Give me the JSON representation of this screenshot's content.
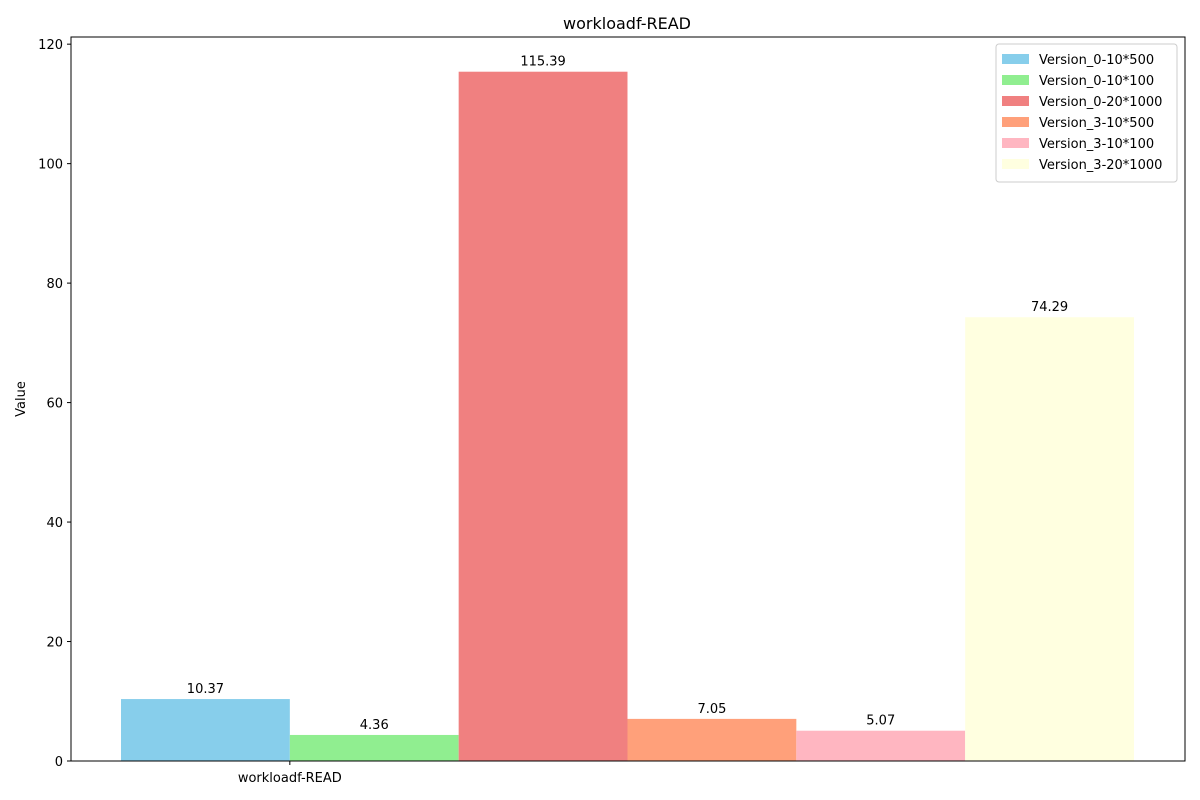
{
  "chart_data": {
    "type": "bar",
    "title": "workloadf-READ",
    "xlabel": "",
    "ylabel": "Value",
    "categories": [
      "workloadf-READ"
    ],
    "ylim": [
      0,
      121.2
    ],
    "yticks": [
      0,
      20,
      40,
      60,
      80,
      100,
      120
    ],
    "grid": false,
    "legend_position": "top-right",
    "series": [
      {
        "name": "Version_0-10*500",
        "values": [
          10.37
        ],
        "color": "#87ceeb"
      },
      {
        "name": "Version_0-10*100",
        "values": [
          4.36
        ],
        "color": "#90ee90"
      },
      {
        "name": "Version_0-20*1000",
        "values": [
          115.39
        ],
        "color": "#f08080"
      },
      {
        "name": "Version_3-10*500",
        "values": [
          7.05
        ],
        "color": "#ffa07a"
      },
      {
        "name": "Version_3-10*100",
        "values": [
          5.07
        ],
        "color": "#ffb6c1"
      },
      {
        "name": "Version_3-20*1000",
        "values": [
          74.29
        ],
        "color": "#ffffe0"
      }
    ],
    "data_labels": [
      "10.37",
      "4.36",
      "115.39",
      "7.05",
      "5.07",
      "74.29"
    ]
  }
}
